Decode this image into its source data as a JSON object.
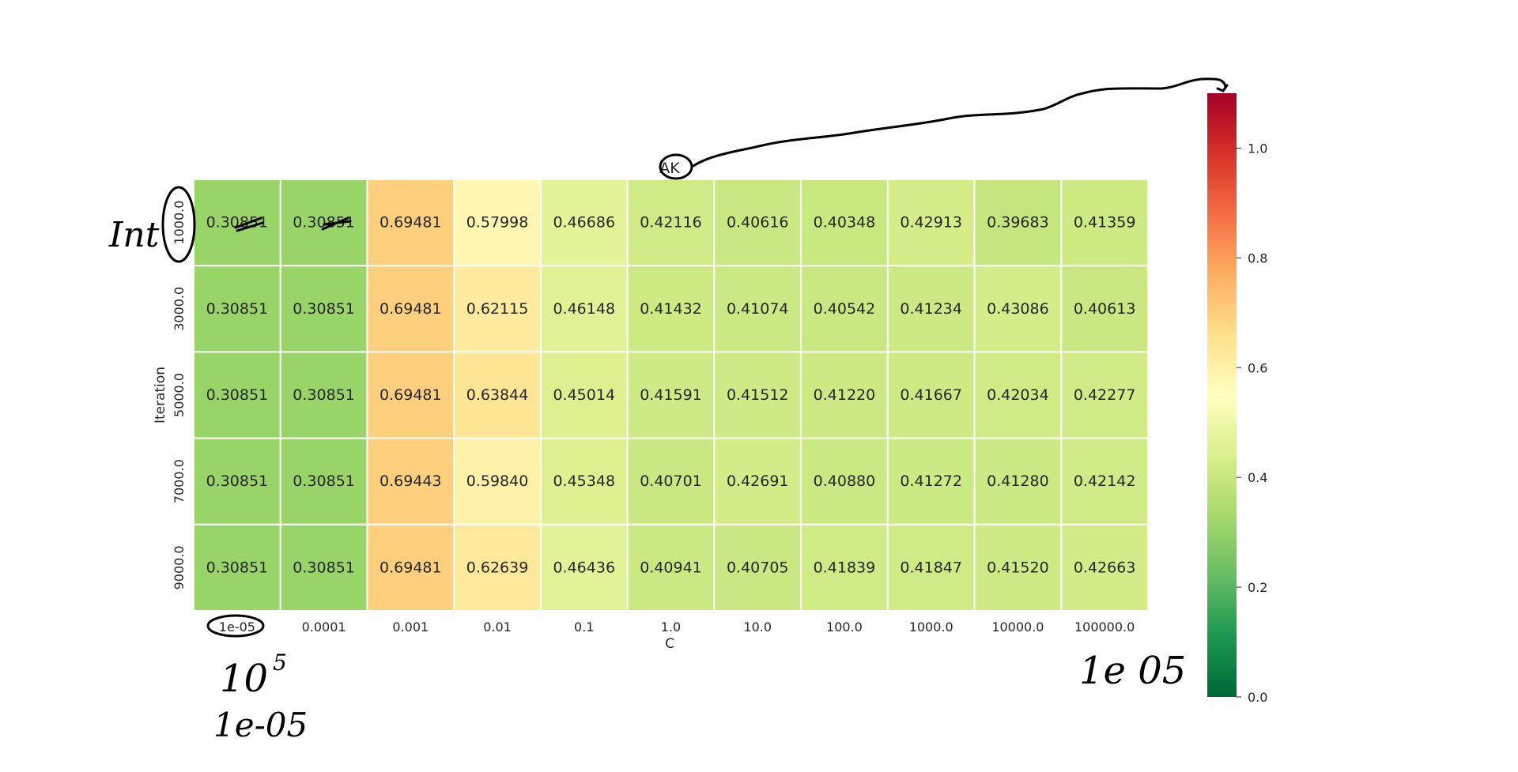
{
  "chart_data": {
    "type": "heatmap",
    "colormap": "RdYlGn_r",
    "vmin": 0.0,
    "vmax": 1.1,
    "title": "AK",
    "xlabel": "C",
    "ylabel": "Iteration",
    "x_categories": [
      "1e-05",
      "0.0001",
      "0.001",
      "0.01",
      "0.1",
      "1.0",
      "10.0",
      "100.0",
      "1000.0",
      "10000.0",
      "100000.0"
    ],
    "y_categories": [
      "1000.0",
      "3000.0",
      "5000.0",
      "7000.0",
      "9000.0"
    ],
    "values": [
      [
        0.30851,
        0.30851,
        0.69481,
        0.57998,
        0.46686,
        0.42116,
        0.40616,
        0.40348,
        0.42913,
        0.39683,
        0.41359
      ],
      [
        0.30851,
        0.30851,
        0.69481,
        0.62115,
        0.46148,
        0.41432,
        0.41074,
        0.40542,
        0.41234,
        0.43086,
        0.40613
      ],
      [
        0.30851,
        0.30851,
        0.69481,
        0.63844,
        0.45014,
        0.41591,
        0.41512,
        0.4122,
        0.41667,
        0.42034,
        0.42277
      ],
      [
        0.30851,
        0.30851,
        0.69443,
        0.5984,
        0.45348,
        0.40701,
        0.42691,
        0.4088,
        0.41272,
        0.4128,
        0.42142
      ],
      [
        0.30851,
        0.30851,
        0.69481,
        0.62639,
        0.46436,
        0.40941,
        0.40705,
        0.41839,
        0.41847,
        0.4152,
        0.42663
      ]
    ],
    "colorbar_ticks": [
      "0.0",
      "0.2",
      "0.4",
      "0.6",
      "0.8",
      "1.0"
    ],
    "grid": false
  },
  "annotations": {
    "handwritten": [
      "Int",
      "10",
      "5",
      "1e-05",
      "1e 05"
    ]
  }
}
